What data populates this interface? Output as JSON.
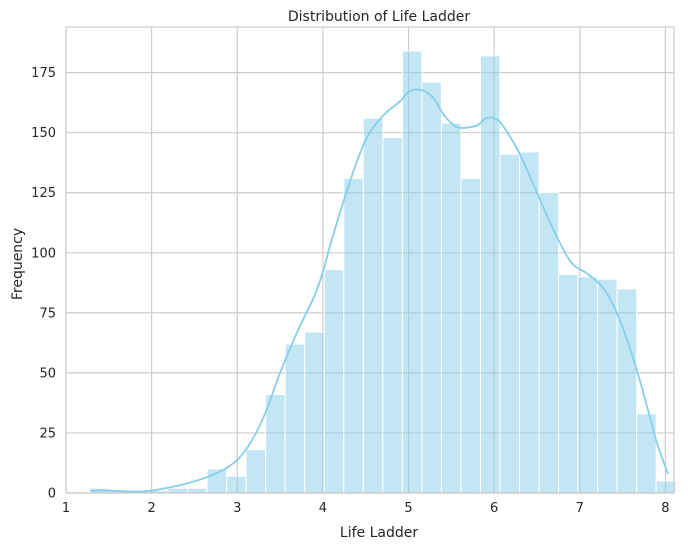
{
  "chart_data": {
    "type": "bar",
    "title": "Distribution of Life Ladder",
    "xlabel": "Life Ladder",
    "ylabel": "Frequency",
    "xlim": [
      1.0,
      8.1
    ],
    "ylim": [
      0,
      194
    ],
    "xticks": [
      1,
      2,
      3,
      4,
      5,
      6,
      7,
      8
    ],
    "yticks": [
      0,
      25,
      50,
      75,
      100,
      125,
      150,
      175
    ],
    "grid": true,
    "colors": {
      "bar": "#87ceeb",
      "line": "#87ceeb",
      "grid": "#cccccc"
    },
    "bins": [
      {
        "x0": 1.28,
        "x1": 1.508,
        "count": 2
      },
      {
        "x0": 1.508,
        "x1": 1.736,
        "count": 1
      },
      {
        "x0": 1.736,
        "x1": 1.964,
        "count": 1
      },
      {
        "x0": 1.964,
        "x1": 2.192,
        "count": 1
      },
      {
        "x0": 2.192,
        "x1": 2.42,
        "count": 2
      },
      {
        "x0": 2.42,
        "x1": 2.648,
        "count": 2
      },
      {
        "x0": 2.648,
        "x1": 2.876,
        "count": 10
      },
      {
        "x0": 2.876,
        "x1": 3.104,
        "count": 7
      },
      {
        "x0": 3.104,
        "x1": 3.332,
        "count": 18
      },
      {
        "x0": 3.332,
        "x1": 3.56,
        "count": 41
      },
      {
        "x0": 3.56,
        "x1": 3.788,
        "count": 62
      },
      {
        "x0": 3.788,
        "x1": 4.016,
        "count": 67
      },
      {
        "x0": 4.016,
        "x1": 4.244,
        "count": 93
      },
      {
        "x0": 4.244,
        "x1": 4.472,
        "count": 131
      },
      {
        "x0": 4.472,
        "x1": 4.7,
        "count": 156
      },
      {
        "x0": 4.7,
        "x1": 4.928,
        "count": 148
      },
      {
        "x0": 4.928,
        "x1": 5.156,
        "count": 184
      },
      {
        "x0": 5.156,
        "x1": 5.384,
        "count": 171
      },
      {
        "x0": 5.384,
        "x1": 5.612,
        "count": 154
      },
      {
        "x0": 5.612,
        "x1": 5.84,
        "count": 131
      },
      {
        "x0": 5.84,
        "x1": 6.068,
        "count": 182
      },
      {
        "x0": 6.068,
        "x1": 6.296,
        "count": 141
      },
      {
        "x0": 6.296,
        "x1": 6.524,
        "count": 142
      },
      {
        "x0": 6.524,
        "x1": 6.752,
        "count": 125
      },
      {
        "x0": 6.752,
        "x1": 6.98,
        "count": 91
      },
      {
        "x0": 6.98,
        "x1": 7.208,
        "count": 90
      },
      {
        "x0": 7.208,
        "x1": 7.436,
        "count": 89
      },
      {
        "x0": 7.436,
        "x1": 7.664,
        "count": 85
      },
      {
        "x0": 7.664,
        "x1": 7.892,
        "count": 33
      },
      {
        "x0": 7.892,
        "x1": 8.12,
        "count": 5
      }
    ],
    "kde": {
      "x": [
        1.28,
        1.5,
        1.8,
        2.0,
        2.3,
        2.6,
        2.9,
        3.1,
        3.3,
        3.5,
        3.7,
        3.9,
        4.0,
        4.1,
        4.3,
        4.5,
        4.7,
        4.9,
        5.0,
        5.1,
        5.2,
        5.3,
        5.4,
        5.5,
        5.6,
        5.8,
        5.9,
        6.0,
        6.1,
        6.3,
        6.5,
        6.7,
        6.9,
        7.1,
        7.3,
        7.5,
        7.7,
        7.9,
        8.03
      ],
      "y": [
        1,
        1,
        0.6,
        1,
        3,
        6,
        11,
        18,
        31,
        50,
        67,
        82,
        92,
        105,
        128,
        147,
        157,
        163,
        167,
        168,
        167,
        164,
        158,
        154,
        152,
        153,
        156,
        156,
        153,
        141,
        125,
        109,
        96,
        91,
        84,
        69,
        47,
        21,
        8
      ]
    }
  }
}
